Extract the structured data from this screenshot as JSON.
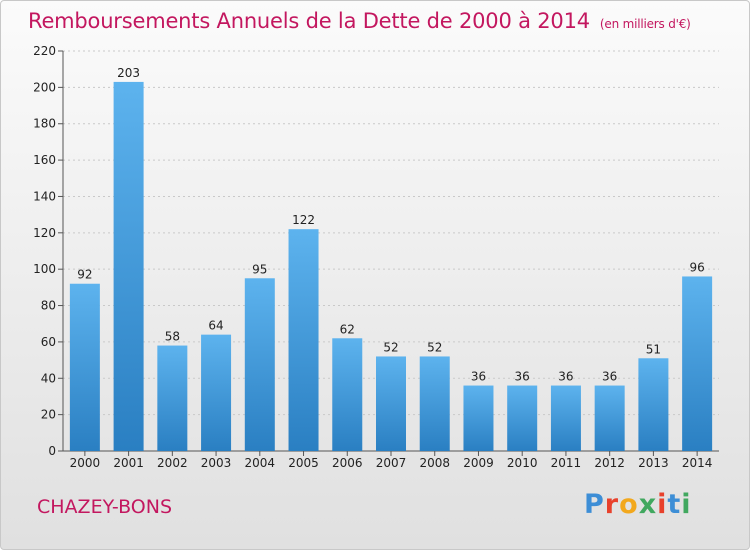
{
  "header": {
    "title": "Remboursements Annuels de la Dette de 2000 à 2014",
    "subtitle": "(en milliers d'€)"
  },
  "footer": {
    "commune": "CHAZEY-BONS",
    "logo_letters": [
      "P",
      "r",
      "o",
      "x",
      "i",
      "t",
      "i"
    ],
    "logo_colors": [
      "#3d8ed6",
      "#e8412c",
      "#f2a81d",
      "#41a85f",
      "#e8412c",
      "#3d8ed6",
      "#41a85f"
    ]
  },
  "chart_data": {
    "type": "bar",
    "title": "Remboursements Annuels de la Dette de 2000 à 2014",
    "subtitle": "(en milliers d'€)",
    "categories": [
      "2000",
      "2001",
      "2002",
      "2003",
      "2004",
      "2005",
      "2006",
      "2007",
      "2008",
      "2009",
      "2010",
      "2011",
      "2012",
      "2013",
      "2014"
    ],
    "values": [
      92,
      203,
      58,
      64,
      95,
      122,
      62,
      52,
      52,
      36,
      36,
      36,
      36,
      51,
      96
    ],
    "ylim": [
      0,
      220
    ],
    "yticks": [
      0,
      20,
      40,
      60,
      80,
      100,
      120,
      140,
      160,
      180,
      200,
      220
    ],
    "grid": true,
    "bar_color": "#3a93d6",
    "bar_color_light": "#5db3ee"
  }
}
